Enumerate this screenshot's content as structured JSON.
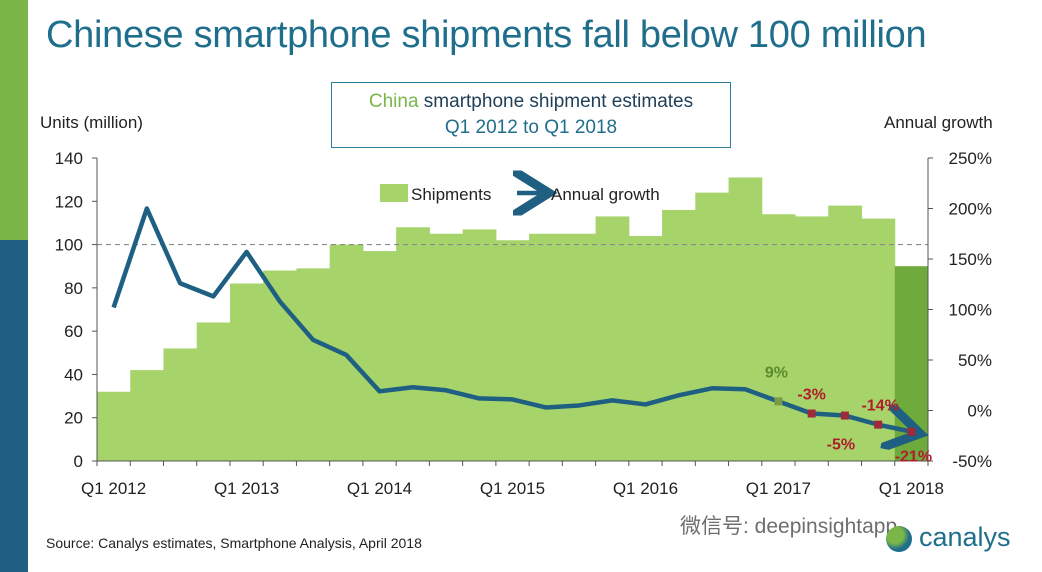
{
  "title": "Chinese smartphone shipments fall below 100 million",
  "subtitle": {
    "line1_highlight": "China",
    "line1_rest": " smartphone shipment estimates",
    "line2": "Q1 2012 to Q1 2018"
  },
  "left_axis_label": "Units (million)",
  "right_axis_label": "Annual growth",
  "source": "Source: Canalys estimates, Smartphone Analysis, April 2018",
  "watermark": "微信号: deepinsightapp",
  "logo_text": "canalys",
  "colors": {
    "bar": "#a6d46a",
    "bar_last": "#6eaa3c",
    "line": "#1f5f82",
    "marker_green": "#7a9a48",
    "marker_red": "#9e2a3a",
    "label_green": "#5c8a2e",
    "label_red": "#b01e2e",
    "title": "#1f6e8c"
  },
  "chart_data": {
    "type": "bar",
    "x_tick_labels": [
      "Q1 2012",
      "Q1 2013",
      "Q1 2014",
      "Q1 2015",
      "Q1 2016",
      "Q1 2017",
      "Q1 2018"
    ],
    "categories": [
      "Q1 2012",
      "Q2 2012",
      "Q3 2012",
      "Q4 2012",
      "Q1 2013",
      "Q2 2013",
      "Q3 2013",
      "Q4 2013",
      "Q1 2014",
      "Q2 2014",
      "Q3 2014",
      "Q4 2014",
      "Q1 2015",
      "Q2 2015",
      "Q3 2015",
      "Q4 2015",
      "Q1 2016",
      "Q2 2016",
      "Q3 2016",
      "Q4 2016",
      "Q1 2017",
      "Q2 2017",
      "Q3 2017",
      "Q4 2017",
      "Q1 2018"
    ],
    "series": [
      {
        "name": "Shipments",
        "axis": "left",
        "type": "bar",
        "values": [
          32,
          42,
          52,
          64,
          82,
          88,
          89,
          100,
          97,
          108,
          105,
          107,
          102,
          105,
          105,
          113,
          104,
          116,
          124,
          131,
          114,
          113,
          118,
          112,
          90
        ]
      },
      {
        "name": "Annual growth",
        "axis": "right",
        "type": "line",
        "values": [
          102,
          200,
          126,
          113,
          157,
          108,
          70,
          55,
          19,
          23,
          20,
          12,
          11,
          3,
          5,
          10,
          6,
          15,
          22,
          21,
          9,
          -3,
          -5,
          -14,
          -21
        ]
      }
    ],
    "point_labels": [
      {
        "index": 20,
        "text": "9%",
        "color": "green"
      },
      {
        "index": 21,
        "text": "-3%",
        "color": "red"
      },
      {
        "index": 22,
        "text": "-5%",
        "color": "red"
      },
      {
        "index": 23,
        "text": "-14%",
        "color": "red"
      },
      {
        "index": 24,
        "text": "-21%",
        "color": "red"
      }
    ],
    "left_ylim": [
      0,
      140
    ],
    "left_ticks": [
      "0",
      "20",
      "40",
      "60",
      "80",
      "100",
      "120",
      "140"
    ],
    "right_ylim": [
      -50,
      250
    ],
    "right_ticks": [
      "-50%",
      "0%",
      "50%",
      "100%",
      "150%",
      "200%",
      "250%"
    ],
    "reference_line": {
      "value": 100,
      "axis": "left",
      "style": "dashed"
    },
    "legend": {
      "placement": "top-center",
      "items": [
        "Shipments",
        "Annual growth"
      ]
    }
  }
}
